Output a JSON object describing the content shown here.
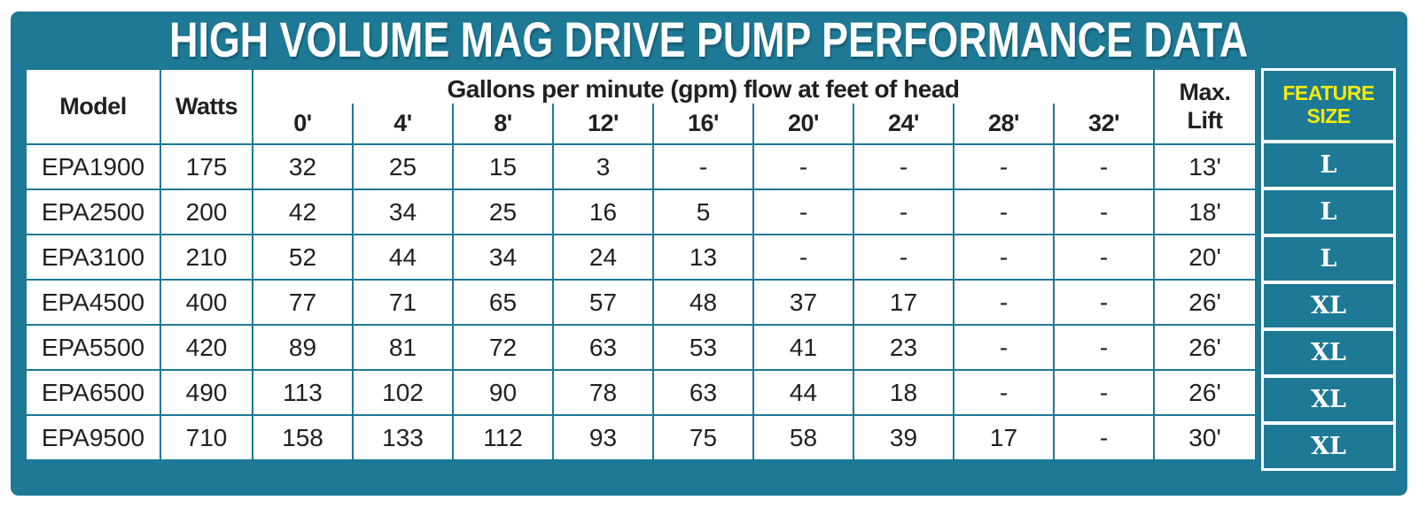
{
  "title": "HIGH VOLUME MAG DRIVE PUMP PERFORMANCE DATA",
  "colors": {
    "teal": "#1d7995",
    "yellow": "#f2ea10",
    "text": "#231f20",
    "paper": "#ffffff"
  },
  "table": {
    "model_header": "Model",
    "watts_header": "Watts",
    "gpm_header": "Gallons per minute (gpm) flow at feet of head",
    "flow_headers": [
      "0'",
      "4'",
      "8'",
      "12'",
      "16'",
      "20'",
      "24'",
      "28'",
      "32'"
    ],
    "max_lift_header_line1": "Max.",
    "max_lift_header_line2": "Lift",
    "rows": [
      {
        "model": "EPA1900",
        "watts": "175",
        "flows": [
          "32",
          "25",
          "15",
          "3",
          "-",
          "-",
          "-",
          "-",
          "-"
        ],
        "max_lift": "13'",
        "size": "L"
      },
      {
        "model": "EPA2500",
        "watts": "200",
        "flows": [
          "42",
          "34",
          "25",
          "16",
          "5",
          "-",
          "-",
          "-",
          "-"
        ],
        "max_lift": "18'",
        "size": "L"
      },
      {
        "model": "EPA3100",
        "watts": "210",
        "flows": [
          "52",
          "44",
          "34",
          "24",
          "13",
          "-",
          "-",
          "-",
          "-"
        ],
        "max_lift": "20'",
        "size": "L"
      },
      {
        "model": "EPA4500",
        "watts": "400",
        "flows": [
          "77",
          "71",
          "65",
          "57",
          "48",
          "37",
          "17",
          "-",
          "-"
        ],
        "max_lift": "26'",
        "size": "XL"
      },
      {
        "model": "EPA5500",
        "watts": "420",
        "flows": [
          "89",
          "81",
          "72",
          "63",
          "53",
          "41",
          "23",
          "-",
          "-"
        ],
        "max_lift": "26'",
        "size": "XL"
      },
      {
        "model": "EPA6500",
        "watts": "490",
        "flows": [
          "113",
          "102",
          "90",
          "78",
          "63",
          "44",
          "18",
          "-",
          "-"
        ],
        "max_lift": "26'",
        "size": "XL"
      },
      {
        "model": "EPA9500",
        "watts": "710",
        "flows": [
          "158",
          "133",
          "112",
          "93",
          "75",
          "58",
          "39",
          "17",
          "-"
        ],
        "max_lift": "30'",
        "size": "XL"
      }
    ]
  },
  "feature": {
    "header_line1": "FEATURE",
    "header_line2": "SIZE"
  }
}
